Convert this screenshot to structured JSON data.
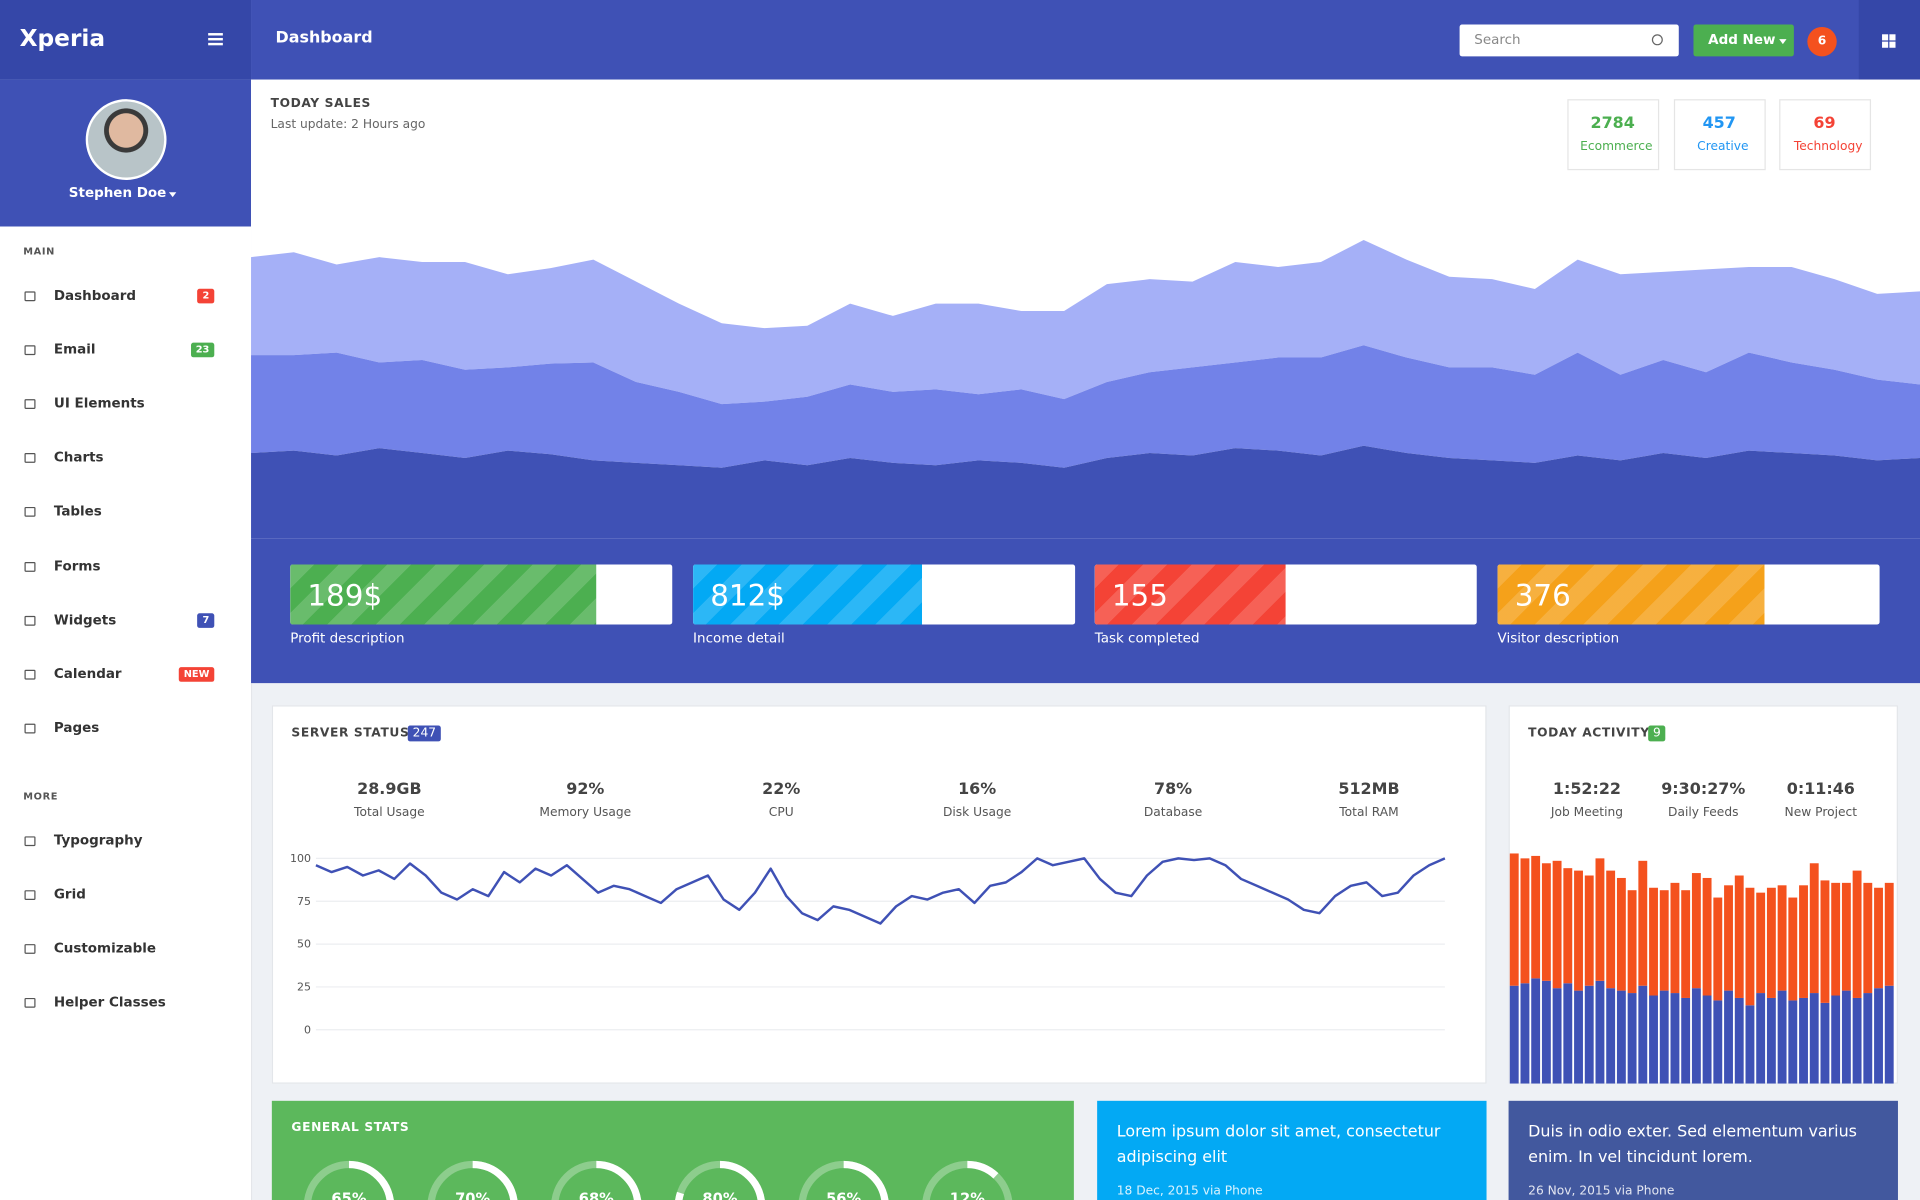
{
  "sidebar": {
    "brand": "Xperia",
    "user": "Stephen Doe",
    "sections": [
      {
        "title": "MAIN",
        "items": [
          {
            "label": "Dashboard",
            "badge": "2",
            "badge_color": "#f44336"
          },
          {
            "label": "Email",
            "badge": "23",
            "badge_color": "#4caf50"
          },
          {
            "label": "UI Elements"
          },
          {
            "label": "Charts"
          },
          {
            "label": "Tables"
          },
          {
            "label": "Forms"
          },
          {
            "label": "Widgets",
            "badge": "7",
            "badge_color": "#3f51b5"
          },
          {
            "label": "Calendar",
            "badge": "NEW",
            "badge_color": "#f44336"
          },
          {
            "label": "Pages"
          }
        ]
      },
      {
        "title": "MORE",
        "items": [
          {
            "label": "Typography"
          },
          {
            "label": "Grid"
          },
          {
            "label": "Customizable"
          },
          {
            "label": "Helper Classes"
          }
        ]
      }
    ]
  },
  "header": {
    "title": "Dashboard",
    "search_placeholder": "Search",
    "button": "Add New",
    "notifications": "6"
  },
  "today_sales": {
    "title": "TODAY SALES",
    "subtitle": "Last update: 2 Hours ago",
    "stats": [
      {
        "value": "2784",
        "label": "Ecommerce",
        "color": "#4caf50"
      },
      {
        "value": "457",
        "label": "Creative",
        "color": "#2196f3"
      },
      {
        "value": "69",
        "label": "Technology",
        "color": "#f44336"
      }
    ],
    "chart": {
      "type": "area",
      "stacked": true,
      "ylim": [
        0,
        250
      ],
      "series": [
        {
          "color": "#3f51b5",
          "values": [
            70,
            72,
            68,
            74,
            70,
            66,
            72,
            69,
            64,
            62,
            60,
            58,
            64,
            60,
            66,
            62,
            60,
            64,
            62,
            58,
            66,
            70,
            68,
            74,
            72,
            68,
            76,
            70,
            66,
            64,
            62,
            68,
            64,
            70,
            66,
            72,
            70,
            68,
            64,
            66
          ]
        },
        {
          "color": "#7282e8",
          "values": [
            80,
            78,
            84,
            70,
            76,
            72,
            68,
            74,
            80,
            66,
            60,
            52,
            48,
            56,
            60,
            58,
            62,
            54,
            60,
            56,
            62,
            66,
            72,
            70,
            76,
            80,
            82,
            78,
            74,
            76,
            72,
            84,
            70,
            76,
            70,
            80,
            74,
            70,
            66,
            60
          ]
        },
        {
          "color": "#a5b0f7",
          "values": [
            80,
            84,
            72,
            86,
            80,
            88,
            76,
            78,
            84,
            82,
            72,
            66,
            60,
            58,
            66,
            62,
            70,
            74,
            64,
            72,
            80,
            76,
            70,
            82,
            74,
            78,
            86,
            80,
            74,
            72,
            70,
            76,
            82,
            72,
            84,
            70,
            78,
            74,
            70,
            76
          ]
        }
      ]
    },
    "cards": [
      {
        "value": "189$",
        "label": "Profit description",
        "fill": 80,
        "color": "#4caf50"
      },
      {
        "value": "812$",
        "label": "Income detail",
        "fill": 60,
        "color": "#03a9f4"
      },
      {
        "value": "155",
        "label": "Task completed",
        "fill": 50,
        "color": "#f44336"
      },
      {
        "value": "376",
        "label": "Visitor description",
        "fill": 70,
        "color": "#f5a11a"
      }
    ]
  },
  "server_status": {
    "title": "SERVER STATUS",
    "badge": "247",
    "stats": [
      {
        "value": "28.9GB",
        "label": "Total Usage"
      },
      {
        "value": "92%",
        "label": "Memory Usage"
      },
      {
        "value": "22%",
        "label": "CPU"
      },
      {
        "value": "16%",
        "label": "Disk Usage"
      },
      {
        "value": "78%",
        "label": "Database"
      },
      {
        "value": "512MB",
        "label": "Total RAM"
      }
    ],
    "chart": {
      "type": "line",
      "color": "#3f51b5",
      "ylim": [
        0,
        100
      ],
      "yticks": [
        0,
        25,
        50,
        75,
        100
      ],
      "grid": true,
      "values": [
        96,
        92,
        95,
        90,
        93,
        88,
        97,
        90,
        80,
        76,
        82,
        78,
        92,
        86,
        94,
        90,
        96,
        88,
        80,
        84,
        82,
        78,
        74,
        82,
        86,
        90,
        76,
        70,
        80,
        94,
        78,
        68,
        64,
        72,
        70,
        66,
        62,
        72,
        78,
        76,
        80,
        82,
        74,
        84,
        86,
        92,
        100,
        96,
        98,
        100,
        88,
        80,
        78,
        90,
        98,
        100,
        99,
        100,
        96,
        88,
        84,
        80,
        76,
        70,
        68,
        78,
        84,
        86,
        78,
        80,
        90,
        96,
        100
      ]
    }
  },
  "today_activity": {
    "title": "TODAY ACTIVITY",
    "badge": "9",
    "stats": [
      {
        "value": "1:52:22",
        "label": "Job Meeting"
      },
      {
        "value": "9:30:27%",
        "label": "Daily Feeds"
      },
      {
        "value": "0:11:46",
        "label": "New Project"
      }
    ],
    "chart": {
      "type": "bar",
      "stacked": true,
      "ylim": [
        0,
        190
      ],
      "series": [
        {
          "color": "#3f51b5",
          "values": [
            80,
            82,
            86,
            84,
            78,
            82,
            76,
            80,
            84,
            78,
            76,
            74,
            80,
            72,
            76,
            74,
            70,
            78,
            72,
            68,
            76,
            70,
            64,
            74,
            70,
            76,
            68,
            70,
            74,
            66,
            72,
            76,
            70,
            74,
            78,
            80
          ]
        },
        {
          "color": "#f4511e",
          "values": [
            108,
            102,
            100,
            96,
            104,
            94,
            98,
            90,
            100,
            96,
            92,
            84,
            102,
            88,
            82,
            90,
            88,
            94,
            96,
            84,
            86,
            100,
            96,
            82,
            90,
            86,
            84,
            92,
            106,
            100,
            92,
            88,
            104,
            90,
            82,
            84
          ]
        }
      ]
    }
  },
  "general_stats": {
    "title": "GENERAL STATS",
    "type": "donut",
    "values": [
      65,
      70,
      68,
      80,
      56,
      12
    ],
    "value_labels": [
      "65%",
      "70%",
      "68%",
      "80%",
      "56%",
      "12%"
    ]
  },
  "posts": [
    {
      "text": "Lorem ipsum dolor sit amet, consectetur adipiscing elit",
      "meta": "18 Dec, 2015 via Phone",
      "color": "#03a9f4"
    },
    {
      "text": "Duis in odio exter. Sed elementum varius enim. In vel tincidunt lorem.",
      "meta": "26 Nov, 2015 via Phone",
      "color": "#42589e"
    }
  ]
}
